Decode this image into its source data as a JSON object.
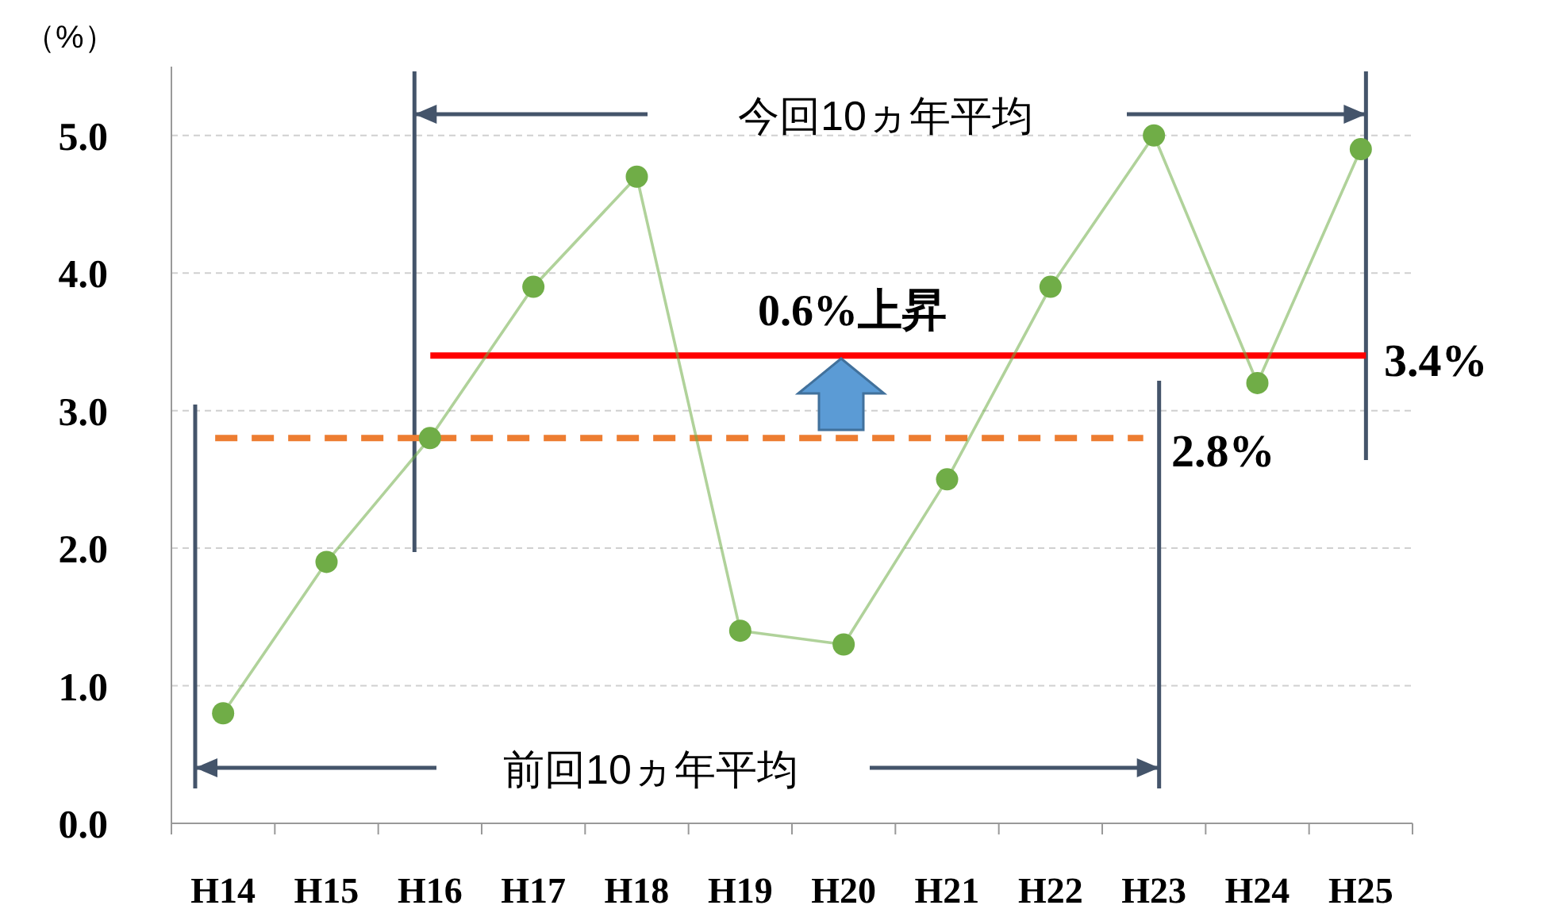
{
  "chart_data": {
    "type": "line",
    "ylabel": "（%）",
    "categories": [
      "H14",
      "H15",
      "H16",
      "H17",
      "H18",
      "H19",
      "H20",
      "H21",
      "H22",
      "H23",
      "H24",
      "H25"
    ],
    "series": [
      {
        "color": "#70ad47",
        "values": [
          0.8,
          1.9,
          2.8,
          3.9,
          4.7,
          1.4,
          1.3,
          2.5,
          3.9,
          5.0,
          3.2,
          4.9
        ]
      }
    ],
    "ylim": [
      0,
      5.5
    ],
    "yticks": [
      {
        "value": 0,
        "label": "0.0"
      },
      {
        "value": 1,
        "label": "1.0"
      },
      {
        "value": 2,
        "label": "2.0"
      },
      {
        "value": 3,
        "label": "3.0"
      },
      {
        "value": 4,
        "label": "4.0"
      },
      {
        "value": 5,
        "label": "5.0"
      }
    ],
    "grid": "y",
    "marker": "circle",
    "line_style": "solid",
    "ref_lines": [
      {
        "axis": "y",
        "value": 3.4,
        "label": "3.4%",
        "color": "#ff0000",
        "line_style": "solid"
      },
      {
        "axis": "y",
        "value": 2.8,
        "label": "2.8%",
        "color": "#ed7d31",
        "line_style": "dashed"
      }
    ],
    "annotations": [
      "今回10ヵ年平均",
      "0.6%上昇",
      "前回10ヵ年平均"
    ]
  }
}
